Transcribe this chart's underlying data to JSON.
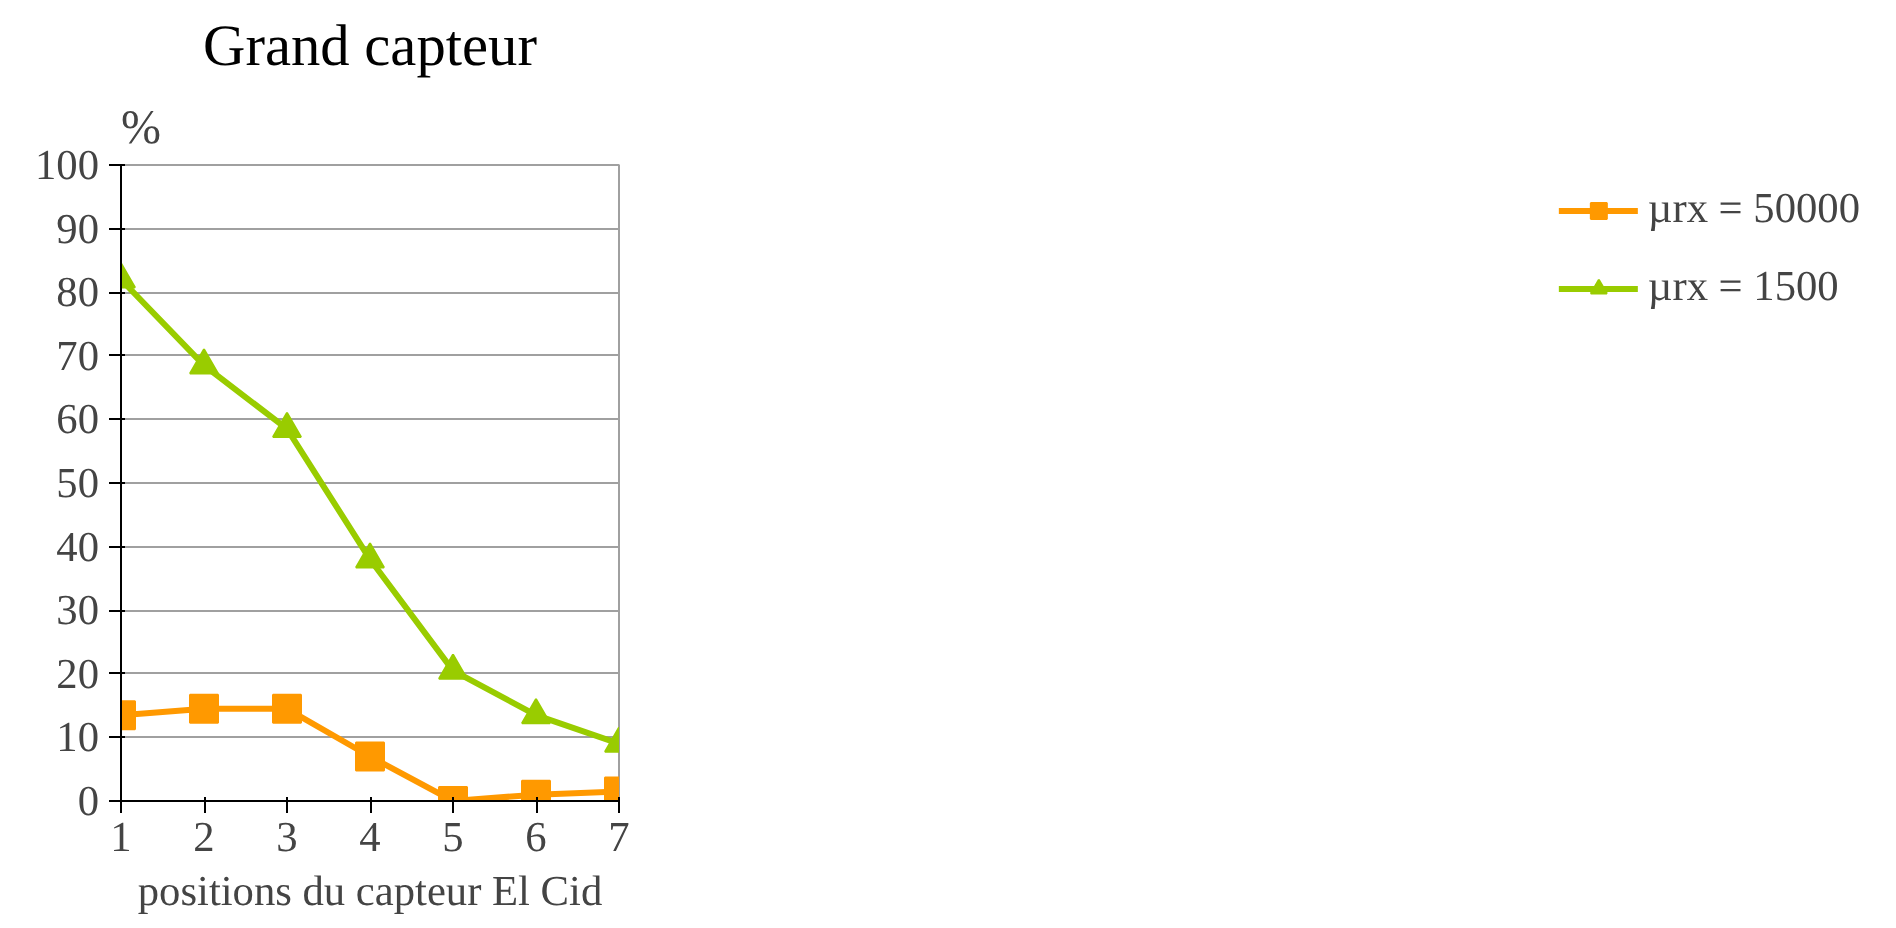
{
  "chart_data": {
    "type": "line",
    "title": "Grand capteur",
    "ylabel": "%",
    "xlabel": "positions du capteur El Cid",
    "x": [
      1,
      2,
      3,
      4,
      5,
      6,
      7
    ],
    "xlim": [
      1,
      7
    ],
    "xticks": [
      1,
      2,
      3,
      4,
      5,
      6,
      7
    ],
    "ylim": [
      0,
      100
    ],
    "yticks": [
      0,
      10,
      20,
      30,
      40,
      50,
      60,
      70,
      80,
      90,
      100
    ],
    "grid": "y",
    "legend": "right",
    "line_style": "solid",
    "series": [
      {
        "name": "µrx = 50000",
        "color": "#ff9900",
        "marker": "square",
        "values": [
          13.5,
          14.5,
          14.5,
          7,
          0,
          1,
          1.5
        ]
      },
      {
        "name": "µrx = 1500",
        "color": "#99cc00",
        "marker": "triangle",
        "values": [
          82,
          68.5,
          58.5,
          38,
          20.5,
          13.5,
          9
        ]
      }
    ]
  }
}
